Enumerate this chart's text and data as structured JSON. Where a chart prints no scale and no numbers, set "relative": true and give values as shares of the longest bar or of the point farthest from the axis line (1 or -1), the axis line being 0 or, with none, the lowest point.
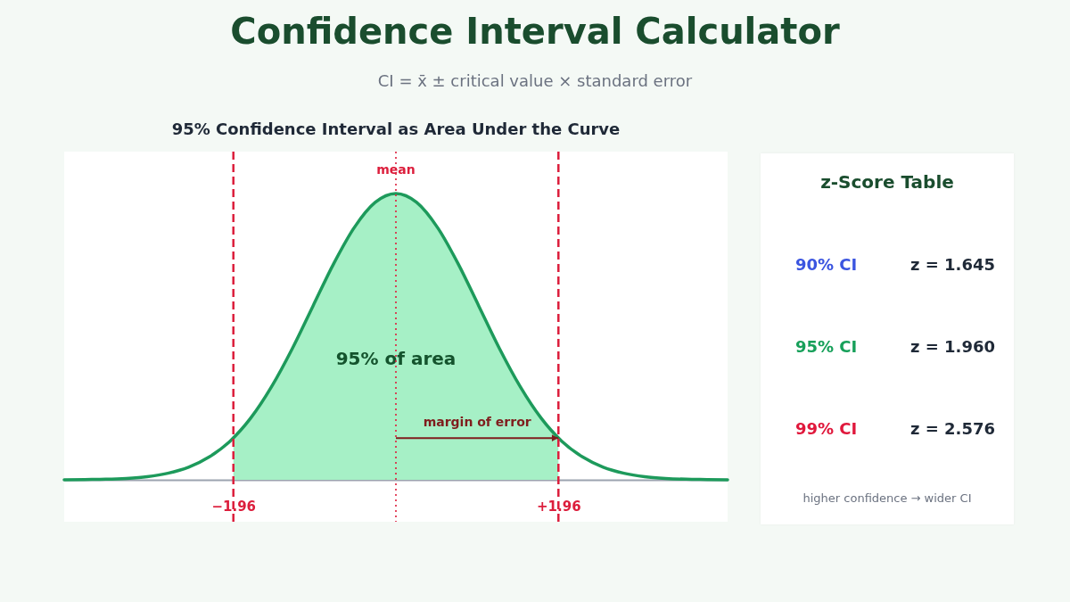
{
  "chart_data": [
    {
      "type": "other",
      "title": "Confidence Interval Calculator",
      "subtitle": "CI = x̄ ± critical value × standard error"
    },
    {
      "type": "area",
      "title": "95% Confidence Interval as Area Under the Curve",
      "relative": true,
      "xlim": [
        -4,
        4
      ],
      "xticks": [
        {
          "value": -1.96,
          "label": "−1.96"
        },
        {
          "value": 1.96,
          "label": "+1.96"
        }
      ],
      "tick_labels": "x",
      "series": [
        {
          "type": "area",
          "color": "#a6f0c6",
          "x": [
            -1.96,
            -1.75,
            -1.5,
            -1.25,
            -1,
            -0.75,
            -0.5,
            -0.25,
            0,
            0.25,
            0.5,
            0.75,
            1,
            1.25,
            1.5,
            1.75,
            1.96
          ],
          "values": [
            0.146,
            0.216,
            0.325,
            0.458,
            0.607,
            0.755,
            0.882,
            0.969,
            1,
            0.969,
            0.882,
            0.755,
            0.607,
            0.458,
            0.325,
            0.216,
            0.146
          ]
        },
        {
          "type": "line",
          "color": "#1d9a5b",
          "x": [
            -4,
            -3.75,
            -3.5,
            -3.25,
            -3,
            -2.75,
            -2.5,
            -2.25,
            -2,
            -1.75,
            -1.5,
            -1.25,
            -1,
            -0.75,
            -0.5,
            -0.25,
            0,
            0.25,
            0.5,
            0.75,
            1,
            1.25,
            1.5,
            1.75,
            2,
            2.25,
            2.5,
            2.75,
            3,
            3.25,
            3.5,
            3.75,
            4
          ],
          "values": [
            0,
            0.001,
            0.002,
            0.005,
            0.011,
            0.023,
            0.044,
            0.08,
            0.135,
            0.216,
            0.325,
            0.458,
            0.607,
            0.755,
            0.882,
            0.969,
            1,
            0.969,
            0.882,
            0.755,
            0.607,
            0.458,
            0.325,
            0.216,
            0.135,
            0.08,
            0.044,
            0.023,
            0.011,
            0.005,
            0.002,
            0.001,
            0
          ]
        }
      ],
      "ref_lines": [
        {
          "axis": "x",
          "value": -1.96,
          "color": "#dc1e3c",
          "line_style": "dashed"
        },
        {
          "axis": "x",
          "value": 0,
          "label": "mean",
          "color": "#dc1e3c",
          "line_style": "dotted"
        },
        {
          "axis": "x",
          "value": 1.96,
          "color": "#dc1e3c",
          "line_style": "dashed"
        }
      ],
      "annotations": [
        {
          "text": "95% of area",
          "x": 0,
          "y": 0.42
        },
        "margin of error"
      ]
    },
    {
      "type": "other",
      "title": "z-Score Table",
      "annotations": [
        "90% CI",
        "z = 1.645",
        "95% CI",
        "z = 1.960",
        "99% CI",
        "z = 2.576",
        "higher confidence → wider CI"
      ]
    }
  ]
}
